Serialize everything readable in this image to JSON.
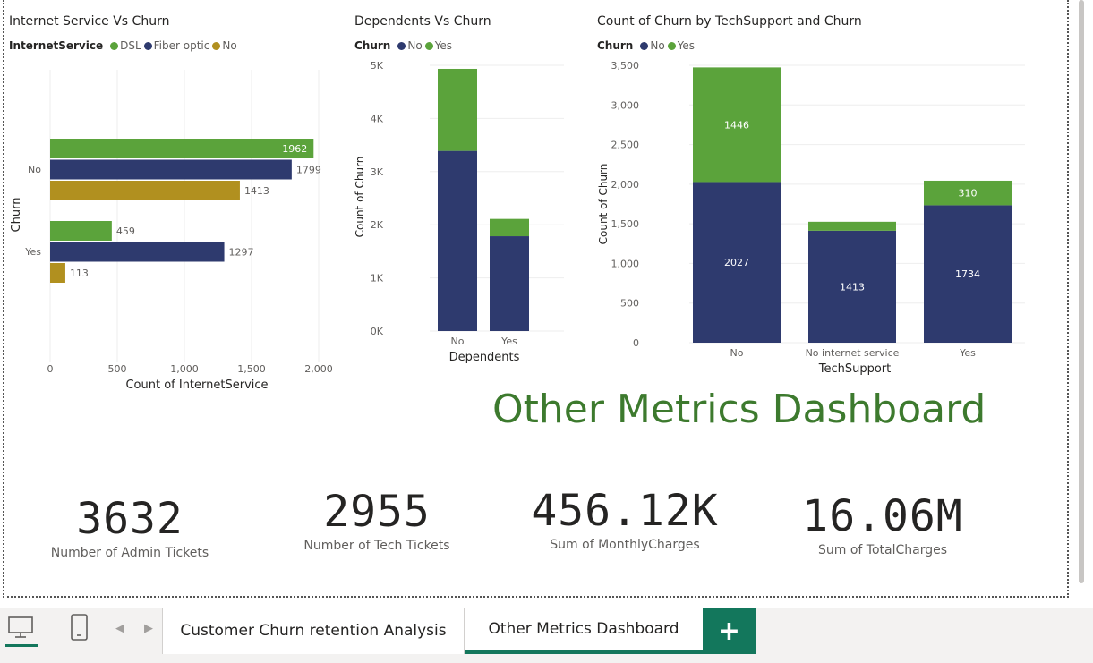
{
  "charts": {
    "internet": {
      "title": "Internet Service Vs Churn",
      "legend_title": "InternetService",
      "legend": [
        "DSL",
        "Fiber optic",
        "No"
      ],
      "xlabel": "Count of InternetService",
      "ylabel": "Churn",
      "xticks": [
        "0",
        "500",
        "1,000",
        "1,500",
        "2,000"
      ]
    },
    "dependents": {
      "title": "Dependents Vs Churn",
      "legend_title": "Churn",
      "legend": [
        "No",
        "Yes"
      ],
      "xlabel": "Dependents",
      "ylabel": "Count of Churn",
      "yticks": [
        "0K",
        "1K",
        "2K",
        "3K",
        "4K",
        "5K"
      ]
    },
    "techsupport": {
      "title": "Count of Churn by TechSupport and Churn",
      "legend_title": "Churn",
      "legend": [
        "No",
        "Yes"
      ],
      "xlabel": "TechSupport",
      "ylabel": "Count of Churn",
      "yticks": [
        "0",
        "500",
        "1,000",
        "1,500",
        "2,000",
        "2,500",
        "3,000",
        "3,500"
      ]
    }
  },
  "chart_data": [
    {
      "type": "bar",
      "orientation": "horizontal",
      "title": "Internet Service Vs Churn",
      "xlabel": "Count of InternetService",
      "ylabel": "Churn",
      "categories": [
        "No",
        "Yes"
      ],
      "series": [
        {
          "name": "DSL",
          "values": [
            1962,
            459
          ]
        },
        {
          "name": "Fiber optic",
          "values": [
            1799,
            1297
          ]
        },
        {
          "name": "No",
          "values": [
            1413,
            113
          ]
        }
      ],
      "xlim": [
        0,
        2000
      ]
    },
    {
      "type": "bar",
      "stacked": true,
      "title": "Dependents Vs Churn",
      "xlabel": "Dependents",
      "ylabel": "Count of Churn",
      "categories": [
        "No",
        "Yes"
      ],
      "series": [
        {
          "name": "No",
          "values": [
            3390,
            1784
          ]
        },
        {
          "name": "Yes",
          "values": [
            1543,
            326
          ]
        }
      ],
      "ylim": [
        0,
        5000
      ]
    },
    {
      "type": "bar",
      "stacked": true,
      "title": "Count of Churn by TechSupport and Churn",
      "xlabel": "TechSupport",
      "ylabel": "Count of Churn",
      "categories": [
        "No",
        "No internet service",
        "Yes"
      ],
      "series": [
        {
          "name": "No",
          "values": [
            2027,
            1413,
            1734
          ]
        },
        {
          "name": "Yes",
          "values": [
            1446,
            113,
            310
          ]
        }
      ],
      "ylim": [
        0,
        3500
      ]
    }
  ],
  "colors": {
    "green": "#5ba33b",
    "navy": "#2e3a6e",
    "gold": "#b1901f",
    "accent": "#13775c",
    "title_green": "#3d7a2e"
  },
  "headline": "Other Metrics Dashboard",
  "kpis": [
    {
      "value": "3632",
      "label": "Number of  Admin Tickets"
    },
    {
      "value": "2955",
      "label": "Number of  Tech Tickets"
    },
    {
      "value": "456.12K",
      "label": "Sum of MonthlyCharges"
    },
    {
      "value": "16.06M",
      "label": "Sum of TotalCharges"
    }
  ],
  "tabs": [
    {
      "label": "Customer Churn retention Analysis",
      "active": false
    },
    {
      "label": "Other Metrics Dashboard",
      "active": true
    }
  ],
  "add_label": "+",
  "icons": [
    "desktop-icon",
    "phone-icon",
    "chevron-left-icon",
    "chevron-right-icon"
  ]
}
